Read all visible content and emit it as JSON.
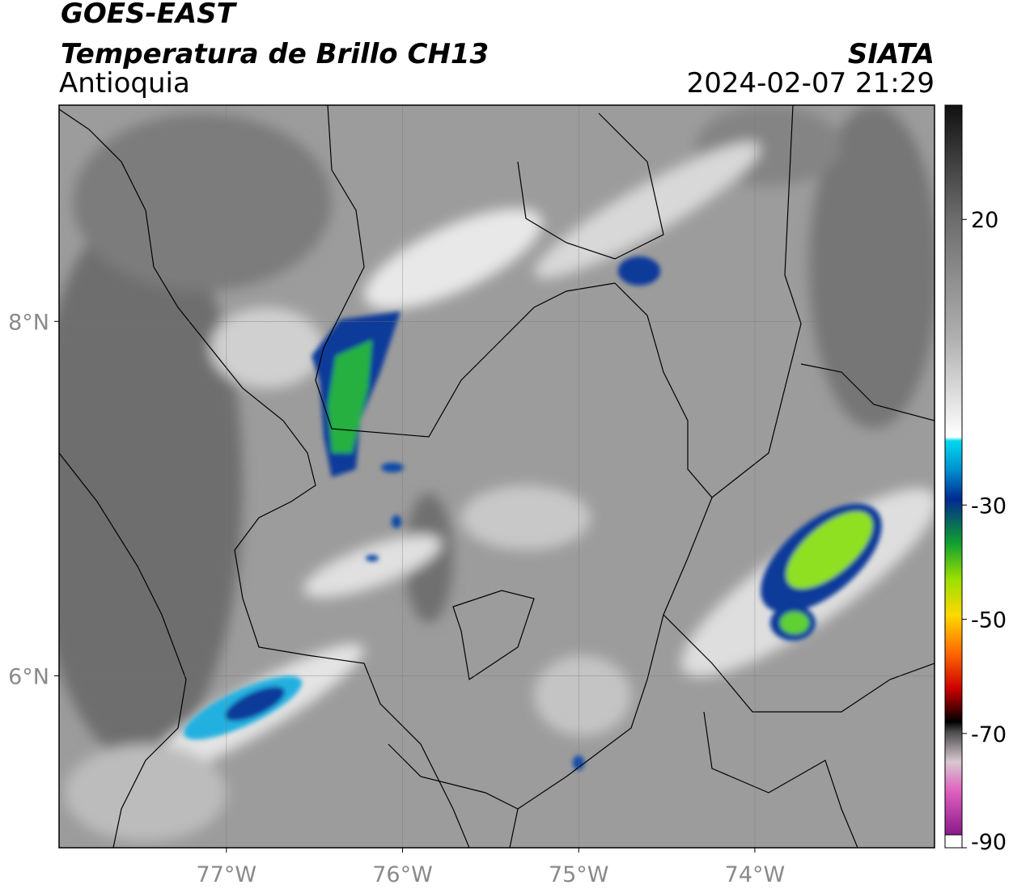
{
  "header": {
    "title": "GOES-EAST",
    "subtitle": "Temperatura de Brillo CH13",
    "region": "Antioquia",
    "source": "SIATA",
    "datetime": "2024-02-07 21:29"
  },
  "map": {
    "lonlim": [
      -77.95,
      -72.98
    ],
    "latlim": [
      5.03,
      9.22
    ],
    "lon_ticks": [
      {
        "value": -77,
        "label": "77°W"
      },
      {
        "value": -76,
        "label": "76°W"
      },
      {
        "value": -75,
        "label": "75°W"
      },
      {
        "value": -74,
        "label": "74°W"
      }
    ],
    "lat_ticks": [
      {
        "value": 8,
        "label": "8°N"
      },
      {
        "value": 6,
        "label": "6°N"
      }
    ]
  },
  "colorbar": {
    "lim": [
      -90,
      40
    ],
    "ticks": [
      20,
      -30,
      -50,
      -70,
      -90
    ]
  }
}
